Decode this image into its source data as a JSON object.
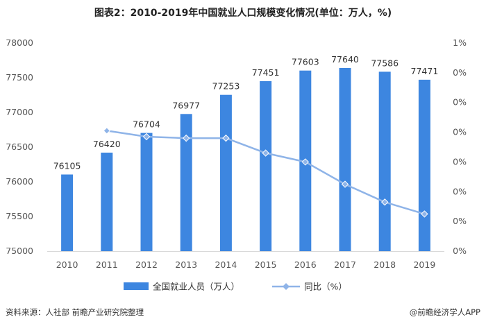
{
  "title": "图表2：2010-2019年中国就业人口规模变化情况(单位：万人，%)",
  "footer": {
    "source": "资料来源：人社部 前瞻产业研究院整理",
    "brand": "@前瞻经济学人APP"
  },
  "colors": {
    "bar": "#3d86e0",
    "line": "#8fb4e8"
  },
  "chart_data": {
    "type": "bar",
    "categories": [
      "2010",
      "2011",
      "2012",
      "2013",
      "2014",
      "2015",
      "2016",
      "2017",
      "2018",
      "2019"
    ],
    "series": [
      {
        "name": "全国就业人员（万人）",
        "type": "bar",
        "axis": "left",
        "values": [
          76105,
          76420,
          76704,
          76977,
          77253,
          77451,
          77603,
          77640,
          77586,
          77471
        ],
        "value_labels": [
          "76105",
          "76420",
          "76704",
          "76977",
          "77253",
          "77451",
          "77603",
          "77640",
          "77586",
          "77471"
        ]
      },
      {
        "name": "同比（%）",
        "type": "line",
        "axis": "right",
        "values": [
          null,
          0.41,
          0.37,
          0.36,
          0.36,
          0.26,
          0.2,
          0.05,
          -0.07,
          -0.15
        ]
      }
    ],
    "y_left": {
      "min": 75000,
      "max": 78000,
      "ticks": [
        75000,
        75500,
        76000,
        76500,
        77000,
        77500,
        78000
      ],
      "tick_labels": [
        "75000",
        "75500",
        "76000",
        "76500",
        "77000",
        "77500",
        "78000"
      ]
    },
    "y_right": {
      "min": -0.4,
      "max": 1.0,
      "tick_labels": [
        "0%",
        "0%",
        "0%",
        "0%",
        "0%",
        "0%",
        "0%",
        "1%"
      ]
    },
    "legend_position": "bottom",
    "grid": false
  }
}
